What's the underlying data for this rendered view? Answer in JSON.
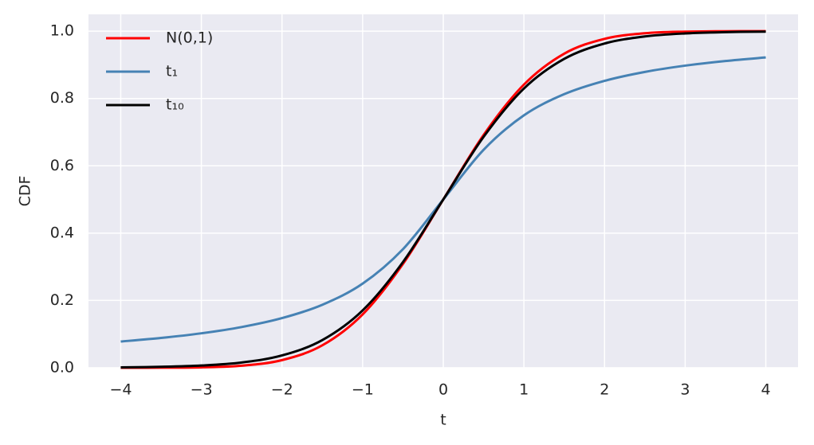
{
  "chart_data": {
    "type": "line",
    "x": [
      -4,
      -3.5,
      -3,
      -2.5,
      -2,
      -1.5,
      -1,
      -0.5,
      0,
      0.5,
      1,
      1.5,
      2,
      2.5,
      3,
      3.5,
      4
    ],
    "series": [
      {
        "name": "N(0,1)",
        "color": "#ff0000",
        "values": [
          0.0,
          0.0002,
          0.0013,
          0.0062,
          0.0228,
          0.0668,
          0.1587,
          0.3085,
          0.5,
          0.6915,
          0.8413,
          0.9332,
          0.9772,
          0.9938,
          0.9987,
          0.9998,
          1.0
        ]
      },
      {
        "name": "t₁",
        "color": "#4682b4",
        "values": [
          0.078,
          0.0886,
          0.1024,
          0.1211,
          0.1476,
          0.1872,
          0.25,
          0.3524,
          0.5,
          0.6476,
          0.75,
          0.8128,
          0.8524,
          0.8789,
          0.8976,
          0.9114,
          0.922
        ]
      },
      {
        "name": "t₁₀",
        "color": "#000000",
        "values": [
          0.0013,
          0.0029,
          0.0067,
          0.0157,
          0.0367,
          0.0823,
          0.1704,
          0.314,
          0.5,
          0.686,
          0.8296,
          0.9177,
          0.9633,
          0.9843,
          0.9933,
          0.9971,
          0.9987
        ]
      }
    ],
    "xlabel": "t",
    "ylabel": "CDF",
    "xlim": [
      -4.4,
      4.4
    ],
    "xticks": [
      {
        "value": -4,
        "label": "−4"
      },
      {
        "value": -3,
        "label": "−3"
      },
      {
        "value": -2,
        "label": "−2"
      },
      {
        "value": -1,
        "label": "−1"
      },
      0,
      1,
      2,
      3,
      4
    ],
    "ylim": [
      0,
      1.05
    ],
    "yticks": [
      {
        "value": 0,
        "label": "0.0"
      },
      0.2,
      0.4,
      0.6,
      0.8,
      {
        "value": 1,
        "label": "1.0"
      }
    ],
    "grid": true,
    "legend": "upper left"
  }
}
